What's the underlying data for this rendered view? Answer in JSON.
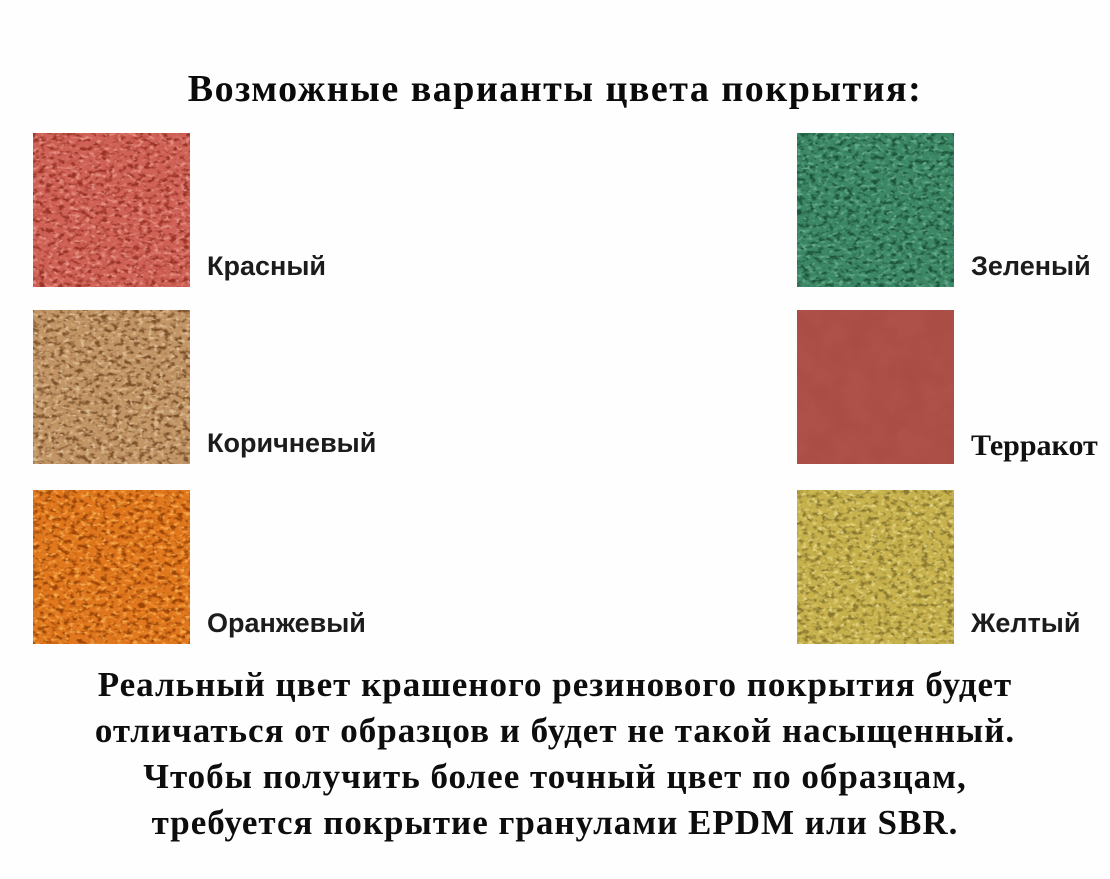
{
  "page": {
    "title": "Возможные варианты цвета покрытия:"
  },
  "swatches": [
    {
      "id": "red",
      "label": "Красный",
      "texture": "granular",
      "base": "#cf6156",
      "dark": "#9a3226",
      "light": "#e68f83"
    },
    {
      "id": "green",
      "label": "Зеленый",
      "texture": "granular",
      "base": "#3c8766",
      "dark": "#1c553b",
      "light": "#63ab8a"
    },
    {
      "id": "brown",
      "label": "Коричневый",
      "texture": "granular",
      "base": "#c19565",
      "dark": "#7c5029",
      "light": "#dcbb91"
    },
    {
      "id": "terracotta",
      "label": "Терракот",
      "texture": "smooth",
      "base": "#ae5148",
      "dark": "#9c443c",
      "light": "#b75c52"
    },
    {
      "id": "orange",
      "label": "Оранжевый",
      "texture": "granular",
      "base": "#e1771d",
      "dark": "#9a4406",
      "light": "#f5a748"
    },
    {
      "id": "yellow",
      "label": "Желтый",
      "texture": "granular",
      "base": "#c7b14c",
      "dark": "#8a782e",
      "light": "#e0d27c"
    }
  ],
  "footnote": {
    "lines": [
      "Реальный цвет крашеного резинового покрытия будет",
      "отличаться от образцов и будет не такой насыщенный.",
      "Чтобы получить более точный цвет по образцам,",
      "требуется покрытие гранулами EPDM или SBR."
    ]
  }
}
